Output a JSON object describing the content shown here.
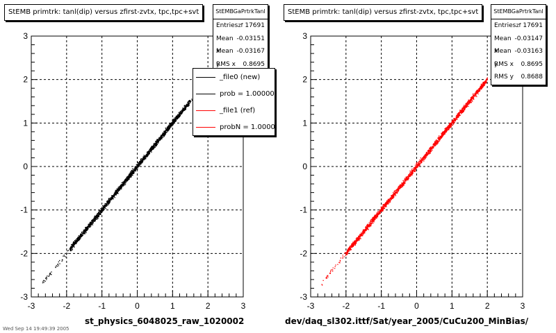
{
  "colors": {
    "new": "#000000",
    "ref": "#ff0000"
  },
  "panels": [
    {
      "title": "StEMB primtrk: tanl(dip) versus zfirst-zvtx, tpc,tpc+svt",
      "stats_title": "StEMBGaPrtrkTanl zf",
      "stats": [
        {
          "label": "Entries",
          "value": "17691"
        },
        {
          "label": "Mean x",
          "value": "-0.03151"
        },
        {
          "label": "Mean y",
          "value": "-0.03167"
        },
        {
          "label": "RMS x",
          "value": "0.8695"
        }
      ],
      "legend": [
        {
          "label": "_file0 (new)",
          "color": "#000000"
        },
        {
          "label": "prob = 1.000000",
          "color": "#000000"
        },
        {
          "label": "_file1 (ref)",
          "color": "#ff0000"
        },
        {
          "label": "probN = 1.000000",
          "color": "#ff0000"
        }
      ],
      "xtitle": "st_physics_6048025_raw_1020002"
    },
    {
      "title": "StEMB primtrk: tanl(dip) versus zfirst-zvtx, tpc,tpc+svt",
      "stats_title": "StEMBGaPrtrkTanl zf",
      "stats": [
        {
          "label": "Entries",
          "value": "17691"
        },
        {
          "label": "Mean x",
          "value": "-0.03147"
        },
        {
          "label": "Mean y",
          "value": "-0.03163"
        },
        {
          "label": "RMS x",
          "value": "0.8695"
        },
        {
          "label": "RMS y",
          "value": "0.8688"
        }
      ],
      "xtitle": "dev/daq_sl302.ittf/Sat/year_2005/CuCu200_MinBias/"
    }
  ],
  "footer": "Wed Sep 14 19:49:39 2005",
  "chart_data": [
    {
      "type": "scatter",
      "title": "StEMB primtrk: tanl(dip) versus zfirst-zvtx, tpc,tpc+svt",
      "xlabel": "st_physics_6048025_raw_1020002",
      "ylabel": "",
      "xlim": [
        -3,
        3
      ],
      "ylim": [
        -3,
        3
      ],
      "x_ticks": [
        "-3",
        "-2",
        "-1",
        "0",
        "1",
        "2",
        "3"
      ],
      "y_ticks": [
        "-3",
        "-2",
        "-1",
        "0",
        "1",
        "2",
        "3"
      ],
      "grid": true,
      "legend_position": "top-right",
      "series": [
        {
          "name": "_file0 (new)",
          "color": "#000000",
          "x_range": [
            -2.7,
            1.6
          ],
          "slope": 1.0,
          "spread": 0.03,
          "dense_range": [
            -1.9,
            1.5
          ]
        }
      ]
    },
    {
      "type": "scatter",
      "title": "StEMB primtrk: tanl(dip) versus zfirst-zvtx, tpc,tpc+svt",
      "xlabel": "dev/daq_sl302.ittf/Sat/year_2005/CuCu200_MinBias/",
      "ylabel": "",
      "xlim": [
        -3,
        3
      ],
      "ylim": [
        -3,
        3
      ],
      "x_ticks": [
        "-3",
        "-2",
        "-1",
        "0",
        "1",
        "2",
        "3"
      ],
      "y_ticks": [
        "-3",
        "-2",
        "-1",
        "0",
        "1",
        "2",
        "3"
      ],
      "grid": true,
      "series": [
        {
          "name": "_file1 (ref)",
          "color": "#ff0000",
          "x_range": [
            -2.7,
            2.0
          ],
          "slope": 1.0,
          "spread": 0.03,
          "dense_range": [
            -2.0,
            2.0
          ]
        }
      ]
    }
  ]
}
